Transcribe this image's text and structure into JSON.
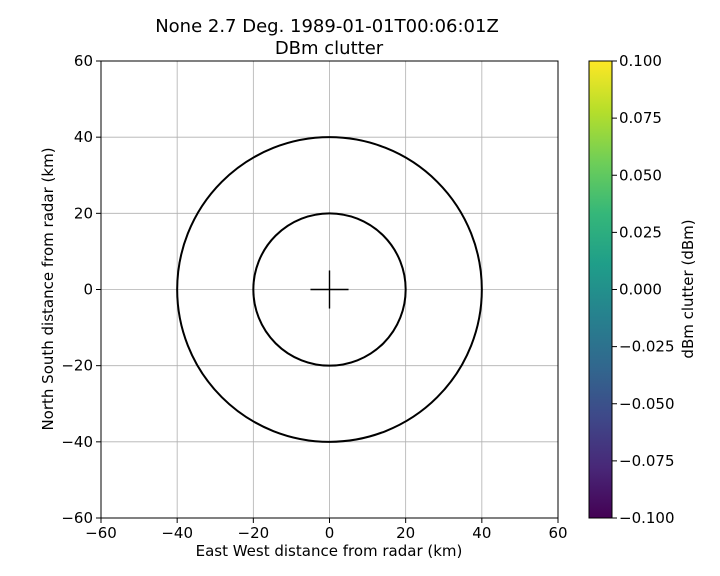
{
  "chart_data": {
    "type": "heatmap",
    "title": "None 2.7 Deg. 1989-01-01T00:06:01Z",
    "subtitle": "DBm clutter",
    "xlabel": "East West distance from radar (km)",
    "ylabel": "North South distance from radar (km)",
    "xlim": [
      -60,
      60
    ],
    "ylim": [
      -60,
      60
    ],
    "xticks": [
      -60,
      -40,
      -20,
      0,
      20,
      40,
      60
    ],
    "yticks": [
      -60,
      -40,
      -20,
      0,
      20,
      40,
      60
    ],
    "xtick_labels": [
      "−60",
      "−40",
      "−20",
      "0",
      "20",
      "40",
      "60"
    ],
    "ytick_labels": [
      "−60",
      "−40",
      "−20",
      "0",
      "20",
      "40",
      "60"
    ],
    "grid": true,
    "range_rings_km": [
      20,
      40
    ],
    "center_cross_km": 5,
    "colorbar": {
      "label": "dBm clutter (dBm)",
      "colormap": "viridis",
      "colors": [
        "#440154",
        "#482878",
        "#3e4989",
        "#31688e",
        "#26828e",
        "#1f9e89",
        "#35b779",
        "#6ece58",
        "#b5de2b",
        "#fde725"
      ],
      "range": [
        -0.1,
        0.1
      ],
      "ticks": [
        -0.1,
        -0.075,
        -0.05,
        -0.025,
        0.0,
        0.025,
        0.05,
        0.075,
        0.1
      ],
      "tick_labels": [
        "−0.100",
        "−0.075",
        "−0.050",
        "−0.025",
        "0.000",
        "0.025",
        "0.050",
        "0.075",
        "0.100"
      ]
    }
  }
}
